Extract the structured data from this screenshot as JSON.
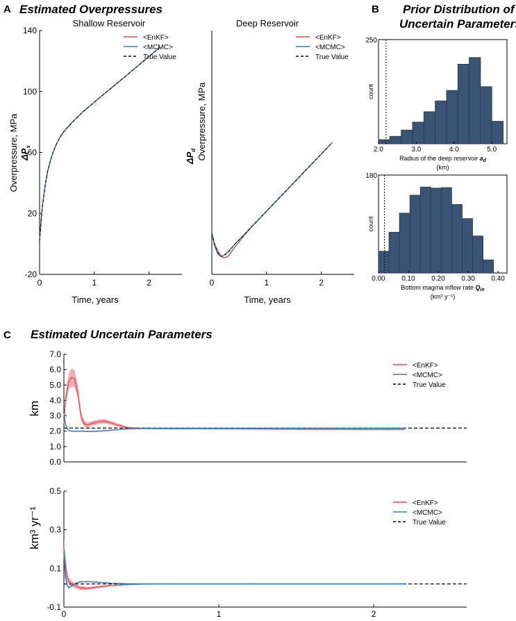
{
  "panels": {
    "A": {
      "letter": "A",
      "title": "Estimated Overpressures"
    },
    "B": {
      "letter": "B",
      "title_line1": "Prior Distribution of",
      "title_line2": "Uncertain Parameters"
    },
    "C": {
      "letter": "C",
      "title": "Estimated Uncertain Parameters"
    }
  },
  "legend": {
    "enkf": "<EnKF>",
    "mcmc": "<MCMC>",
    "true": "True Value"
  },
  "colors": {
    "enkf": "#e8434b",
    "enkf_band": "#efa0a4",
    "mcmc": "#2c7fc4",
    "true": "#000000",
    "bars": "#3a5476",
    "bar_edge": "#26384f"
  },
  "chart_data": [
    {
      "id": "shallow",
      "type": "line",
      "title": "Shallow Reservoir",
      "xlabel": "Time, years",
      "ylabel": "Overpressure, MPa",
      "ysymbol": "ΔP",
      "ysub": "s",
      "xlim": [
        0,
        2.6
      ],
      "ylim": [
        -20,
        140
      ],
      "xticks": [
        "0",
        "1",
        "2"
      ],
      "yticks": [
        "-20",
        "20",
        "60",
        "100",
        "140"
      ],
      "x": [
        0,
        0.02,
        0.05,
        0.1,
        0.15,
        0.2,
        0.25,
        0.3,
        0.35,
        0.4,
        0.45,
        0.5,
        0.6,
        0.7,
        0.8,
        1.0,
        1.2,
        1.4,
        1.6,
        1.8,
        2.0,
        2.2
      ],
      "series": [
        {
          "name": "True Value",
          "values": [
            2,
            12,
            24,
            38,
            48,
            55,
            60.5,
            65,
            68.5,
            71.5,
            74,
            76,
            80,
            83.5,
            87,
            93,
            99,
            105,
            111,
            117,
            123,
            129
          ]
        },
        {
          "name": "<EnKF>",
          "values": [
            2,
            12,
            24,
            38,
            48,
            55,
            60.5,
            65,
            68.5,
            71.5,
            74,
            76,
            80,
            83.5,
            87,
            93,
            99,
            105,
            111,
            117,
            123,
            129
          ]
        },
        {
          "name": "<MCMC>",
          "values": [
            2,
            12,
            24,
            38,
            48,
            55,
            60.5,
            65,
            68.5,
            71.5,
            74,
            76,
            80,
            83.5,
            87,
            93,
            99,
            105,
            111,
            117,
            123,
            129
          ]
        }
      ]
    },
    {
      "id": "deep",
      "type": "line",
      "title": "Deep Reservoir",
      "xlabel": "Time, years",
      "ylabel": "Overpressure, MPa",
      "ysymbol": "ΔP",
      "ysub": "d",
      "xlim": [
        0,
        2.6
      ],
      "ylim": [
        -20,
        140
      ],
      "xticks": [
        "0",
        "1",
        "2"
      ],
      "yticks": [],
      "x": [
        0,
        0.05,
        0.1,
        0.15,
        0.2,
        0.25,
        0.3,
        0.4,
        0.6,
        0.8,
        1.0,
        1.2,
        1.4,
        1.6,
        1.8,
        2.0,
        2.2
      ],
      "series": [
        {
          "name": "True Value",
          "values": [
            7,
            0,
            -5,
            -8,
            -8,
            -7,
            -5.5,
            -1,
            6.5,
            14,
            21.5,
            29,
            36.5,
            44,
            51.5,
            59,
            66.5
          ]
        },
        {
          "name": "<EnKF>",
          "values": [
            7,
            0,
            -4,
            -7,
            -9,
            -9,
            -8,
            -3,
            6,
            14,
            21.5,
            29,
            36.5,
            44,
            51.5,
            59,
            66.5
          ]
        },
        {
          "name": "<MCMC>",
          "values": [
            7,
            -1,
            -6,
            -8,
            -8,
            -6.5,
            -5,
            -1,
            6.5,
            14,
            21.5,
            29,
            36.5,
            44,
            51.5,
            59,
            66.5
          ]
        }
      ]
    },
    {
      "id": "hist_radius",
      "type": "bar",
      "xlabel_main": "Radius of the deep reservoir ",
      "xlabel_sym": "a",
      "xlabel_sub": "d",
      "xlabel_unit": "(km)",
      "ylabel": "count",
      "xlim": [
        2.0,
        5.4
      ],
      "ylim": [
        0,
        250
      ],
      "xticks": [
        "2.0",
        "3.0",
        "4.0",
        "5.0"
      ],
      "yticks": [
        "250"
      ],
      "bin_edges": [
        2.0,
        2.3,
        2.6,
        2.9,
        3.2,
        3.5,
        3.8,
        4.1,
        4.4,
        4.7,
        5.0,
        5.3
      ],
      "values": [
        10,
        18,
        33,
        52,
        77,
        103,
        128,
        191,
        207,
        137,
        54
      ],
      "true_value": 2.2
    },
    {
      "id": "hist_inflow",
      "type": "bar",
      "xlabel_main": "Bottom magma inflow rate ",
      "xlabel_sym": "Q",
      "xlabel_sub": "in",
      "xlabel_unit": "(km³ y⁻¹)",
      "ylabel": "count",
      "xlim": [
        0.0,
        0.43
      ],
      "ylim": [
        0,
        180
      ],
      "xticks": [
        "0.00",
        "0.10",
        "0.20",
        "0.30",
        "0.40"
      ],
      "yticks": [
        "180"
      ],
      "bin_edges": [
        0.0,
        0.035,
        0.07,
        0.105,
        0.14,
        0.175,
        0.21,
        0.245,
        0.28,
        0.315,
        0.35,
        0.385
      ],
      "values": [
        40,
        75,
        110,
        143,
        158,
        156,
        157,
        126,
        100,
        68,
        24
      ],
      "true_value": 0.02
    },
    {
      "id": "param_radius",
      "type": "line",
      "ylabel": "km",
      "xlim": [
        0,
        2.6
      ],
      "ylim": [
        0,
        7.0
      ],
      "xticks": [],
      "yticks": [
        "0.0",
        "1.0",
        "2.0",
        "3.0",
        "4.0",
        "5.0",
        "6.0",
        "7.0"
      ],
      "x": [
        0,
        0.01,
        0.03,
        0.05,
        0.07,
        0.09,
        0.11,
        0.13,
        0.15,
        0.18,
        0.22,
        0.26,
        0.3,
        0.35,
        0.4,
        0.45,
        0.5,
        0.6,
        0.8,
        1.0,
        1.5,
        2.0,
        2.2
      ],
      "series": [
        {
          "name": "<EnKF>",
          "values": [
            2.5,
            4.0,
            5.2,
            5.5,
            5.4,
            4.5,
            3.0,
            2.5,
            2.4,
            2.5,
            2.6,
            2.65,
            2.55,
            2.4,
            2.25,
            2.2,
            2.18,
            2.16,
            2.16,
            2.15,
            2.13,
            2.12,
            2.12
          ],
          "band": [
            0.2,
            0.3,
            0.5,
            0.6,
            0.55,
            0.45,
            0.3,
            0.2,
            0.15,
            0.15,
            0.15,
            0.15,
            0.12,
            0.1,
            0.08,
            0.06,
            0.05,
            0.05,
            0.04,
            0.04,
            0.04,
            0.04,
            0.04
          ]
        },
        {
          "name": "<MCMC>",
          "values": [
            3.2,
            2.4,
            2.05,
            2.0,
            2.0,
            2.0,
            2.0,
            2.0,
            1.98,
            1.98,
            2.0,
            2.03,
            2.06,
            2.1,
            2.14,
            2.16,
            2.17,
            2.18,
            2.19,
            2.19,
            2.19,
            2.19,
            2.19
          ]
        }
      ],
      "true_value": 2.2
    },
    {
      "id": "param_inflow",
      "type": "line",
      "ylabel": "km³ yr⁻¹",
      "xlim": [
        0,
        2.6
      ],
      "ylim": [
        -0.1,
        0.5
      ],
      "xticks": [
        "0",
        "1",
        "2"
      ],
      "yticks": [
        "-0.1",
        "0.1",
        "0.3",
        "0.5"
      ],
      "x": [
        0,
        0.01,
        0.02,
        0.03,
        0.05,
        0.08,
        0.1,
        0.15,
        0.2,
        0.25,
        0.3,
        0.4,
        0.5,
        0.7,
        1.0,
        1.5,
        2.0,
        2.2
      ],
      "series": [
        {
          "name": "<EnKF>",
          "values": [
            0.2,
            0.12,
            0.06,
            0.035,
            0.02,
            0.008,
            0.0,
            -0.003,
            0.002,
            0.007,
            0.012,
            0.016,
            0.019,
            0.02,
            0.02,
            0.02,
            0.02,
            0.02
          ],
          "band": [
            0.05,
            0.05,
            0.03,
            0.02,
            0.015,
            0.012,
            0.01,
            0.008,
            0.006,
            0.005,
            0.004,
            0.003,
            0.003,
            0.002,
            0.002,
            0.002,
            0.002,
            0.002
          ]
        },
        {
          "name": "<MCMC>",
          "values": [
            0.18,
            0.06,
            0.015,
            0.0,
            0.01,
            0.025,
            0.03,
            0.032,
            0.03,
            0.027,
            0.024,
            0.021,
            0.02,
            0.02,
            0.02,
            0.02,
            0.02,
            0.02
          ]
        }
      ],
      "true_value": 0.02
    }
  ]
}
